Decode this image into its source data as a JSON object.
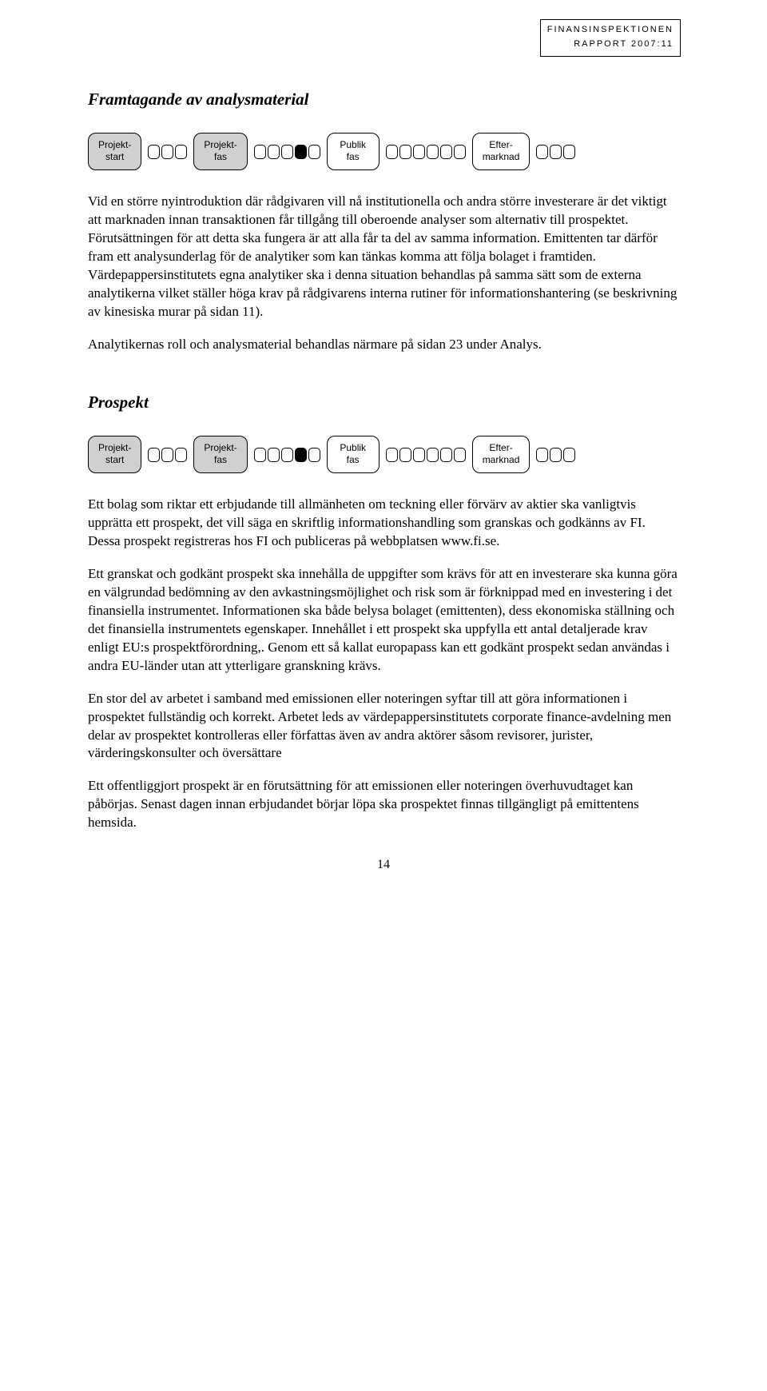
{
  "header": {
    "line1": "FINANSINSPEKTIONEN",
    "line2": "RAPPORT 2007:11"
  },
  "section1": {
    "title": "Framtagande av analysmaterial",
    "para1": "Vid en större nyintroduktion där rådgivaren vill nå institutionella och andra större investerare är det viktigt att marknaden innan transaktionen får tillgång till oberoende analyser som alternativ till prospektet. Förutsättningen för att detta ska fungera är att alla får ta del av samma information. Emittenten tar därför fram ett analysunderlag för de analytiker som kan tänkas komma att följa bolaget i framtiden. Värdepappersinstitutets egna analytiker ska i denna situation behandlas på samma sätt som de externa analytikerna vilket ställer höga krav på rådgivarens interna rutiner för informationshantering (se beskrivning av kinesiska murar på sidan 11).",
    "para2": "Analytikernas roll och analysmaterial behandlas närmare på sidan 23 under Analys."
  },
  "section2": {
    "title": "Prospekt",
    "para1": "Ett bolag som riktar ett erbjudande till allmänheten om teckning eller förvärv av aktier ska vanligtvis upprätta ett prospekt, det vill säga en skriftlig informationshandling som granskas och godkänns av FI. Dessa prospekt registreras hos FI och publiceras på webbplatsen www.fi.se.",
    "para2": "Ett granskat och godkänt prospekt ska innehålla de uppgifter som krävs för att en investerare ska kunna göra en välgrundad bedömning av den avkastningsmöjlighet och risk som är förknippad med en investering i det finansiella instrumentet. Informationen ska både belysa bolaget (emittenten), dess ekonomiska ställning och det finansiella instrumentets egenskaper. Innehållet i ett prospekt ska uppfylla ett antal detaljerade krav enligt EU:s prospektförordning,. Genom ett så kallat europapass kan ett godkänt prospekt sedan användas i andra EU-länder utan att ytterligare granskning krävs.",
    "para3": "En stor del av arbetet i samband med emissionen eller noteringen syftar till att göra informationen i prospektet fullständig och korrekt. Arbetet leds av värdepappersinstitutets corporate finance-avdelning men delar av prospektet kontrolleras eller författas även av andra aktörer såsom revisorer, jurister, värderingskonsulter och översättare",
    "para4": "Ett offentliggjort prospekt är en förutsättning för att emissionen eller noteringen överhuvudtaget kan påbörjas. Senast dagen innan erbjudandet börjar löpa ska prospektet finnas tillgängligt på emittentens hemsida."
  },
  "phases": {
    "p1l1": "Projekt-",
    "p1l2": "start",
    "p2l1": "Projekt-",
    "p2l2": "fas",
    "p3l1": "Publik",
    "p3l2": "fas",
    "p4l1": "Efter-",
    "p4l2": "marknad"
  },
  "diagram_style": {
    "filled_bg": "#d0d0d0",
    "empty_bg": "#ffffff",
    "filled_link_bg": "#000000",
    "border_color": "#000000",
    "box_filled": [
      true,
      true,
      false,
      false
    ],
    "chain1_count": 3,
    "chain2_count": 5,
    "chain2_filled_index": 3,
    "chain3_count": 6,
    "chain4_count": 3
  },
  "page_number": "14"
}
